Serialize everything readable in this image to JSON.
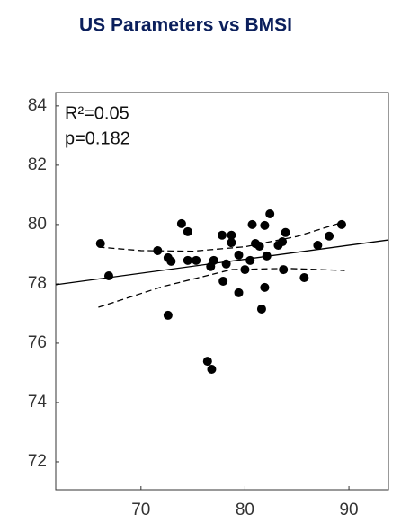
{
  "chart_data": {
    "type": "scatter",
    "title": "US Parameters vs BMSI",
    "annotations": [
      "R²=0.05",
      "p=0.182"
    ],
    "x": [
      66.1,
      66.9,
      71.6,
      72.6,
      72.9,
      72.6,
      73.9,
      74.5,
      74.5,
      75.3,
      76.4,
      76.8,
      76.7,
      77.0,
      77.8,
      77.9,
      78.2,
      78.7,
      78.7,
      79.4,
      79.4,
      80.0,
      80.5,
      80.7,
      81.0,
      81.4,
      81.6,
      81.9,
      81.9,
      82.1,
      82.4,
      83.2,
      83.6,
      83.9,
      83.7,
      85.7,
      87.0,
      88.1,
      89.3
    ],
    "values": [
      79.36,
      78.27,
      79.12,
      78.88,
      78.76,
      76.94,
      80.03,
      79.76,
      78.79,
      78.79,
      75.39,
      75.12,
      78.58,
      78.79,
      79.64,
      78.09,
      78.67,
      79.64,
      79.39,
      78.97,
      77.7,
      78.48,
      78.79,
      80.0,
      79.36,
      79.27,
      77.15,
      79.97,
      77.88,
      78.94,
      80.36,
      79.3,
      79.42,
      79.73,
      78.48,
      78.21,
      79.3,
      79.61,
      80.0
    ],
    "color": "#000000",
    "fit": {
      "x": [
        61.8,
        93.8
      ],
      "values": [
        77.97,
        79.48
      ]
    },
    "ci_upper": {
      "x": [
        65.9,
        70,
        75,
        80,
        85,
        89.6
      ],
      "values": [
        79.24,
        79.12,
        79.1,
        79.25,
        79.6,
        80.1
      ]
    },
    "ci_lower": {
      "x": [
        65.9,
        72,
        78.7,
        84,
        89.6
      ],
      "values": [
        77.21,
        77.9,
        78.48,
        78.52,
        78.45
      ]
    },
    "xlim": [
      61.8,
      93.8
    ],
    "xticks": [
      70,
      80,
      90
    ],
    "ylim": [
      71.06,
      84.45
    ],
    "yticks": [
      72,
      74,
      76,
      78,
      80,
      82,
      84
    ],
    "grid": false
  }
}
